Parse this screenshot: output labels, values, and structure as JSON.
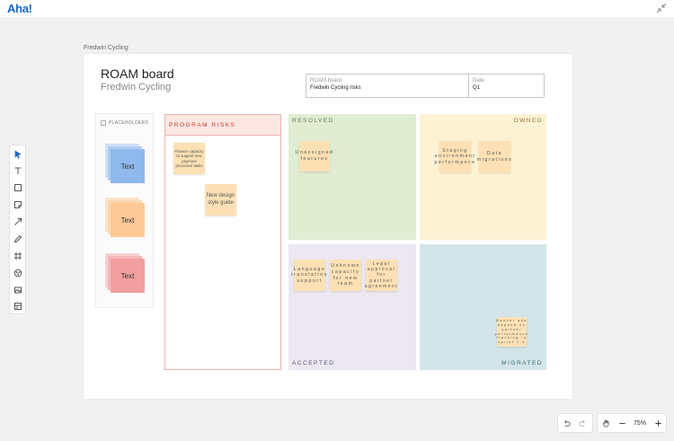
{
  "app": {
    "logo": "Aha!"
  },
  "board_label": "Fredwin Cycling",
  "header": {
    "title": "ROAM board",
    "subtitle": "Fredwin Cycling"
  },
  "meta": {
    "board_key": "ROAM board",
    "board_value": "Fredwin Cycling risks",
    "date_key": "Date",
    "date_value": "Q1"
  },
  "toolbar": {
    "tools": [
      "select-icon",
      "text-icon",
      "shape-icon",
      "sticky-note-icon",
      "arrow-icon",
      "pen-icon",
      "frame-icon",
      "template-icon",
      "image-icon",
      "table-icon"
    ]
  },
  "placeholders": {
    "label": "PLACEHOLDERS",
    "items": [
      {
        "text": "Text",
        "color": "#8fb8ec"
      },
      {
        "text": "Text",
        "color": "#fcc996"
      },
      {
        "text": "Text",
        "color": "#f29f9f"
      }
    ]
  },
  "program_risks": {
    "label": "PROGRAM RISKS",
    "notes": [
      "Finance capacity to support new payment processor tasks",
      "New design style guide"
    ]
  },
  "quadrants": {
    "resolved": {
      "label": "RESOLVED",
      "notes": [
        "Unassigned features"
      ]
    },
    "owned": {
      "label": "OWNED",
      "notes": [
        "Staging environment performance",
        "Data migrations"
      ]
    },
    "accepted": {
      "label": "ACCEPTED",
      "notes": [
        "Language translation support",
        "Unknown capacity for new team",
        "Legal approval for partner agreement"
      ]
    },
    "migrated": {
      "label": "MIGRATED",
      "notes": [
        "Banner ads depend on partner performance tracking in sprint 1.4"
      ]
    }
  },
  "controls": {
    "zoom": "75%"
  },
  "colors": {
    "accent": "#1a66c9",
    "note": "#fde1b4"
  }
}
